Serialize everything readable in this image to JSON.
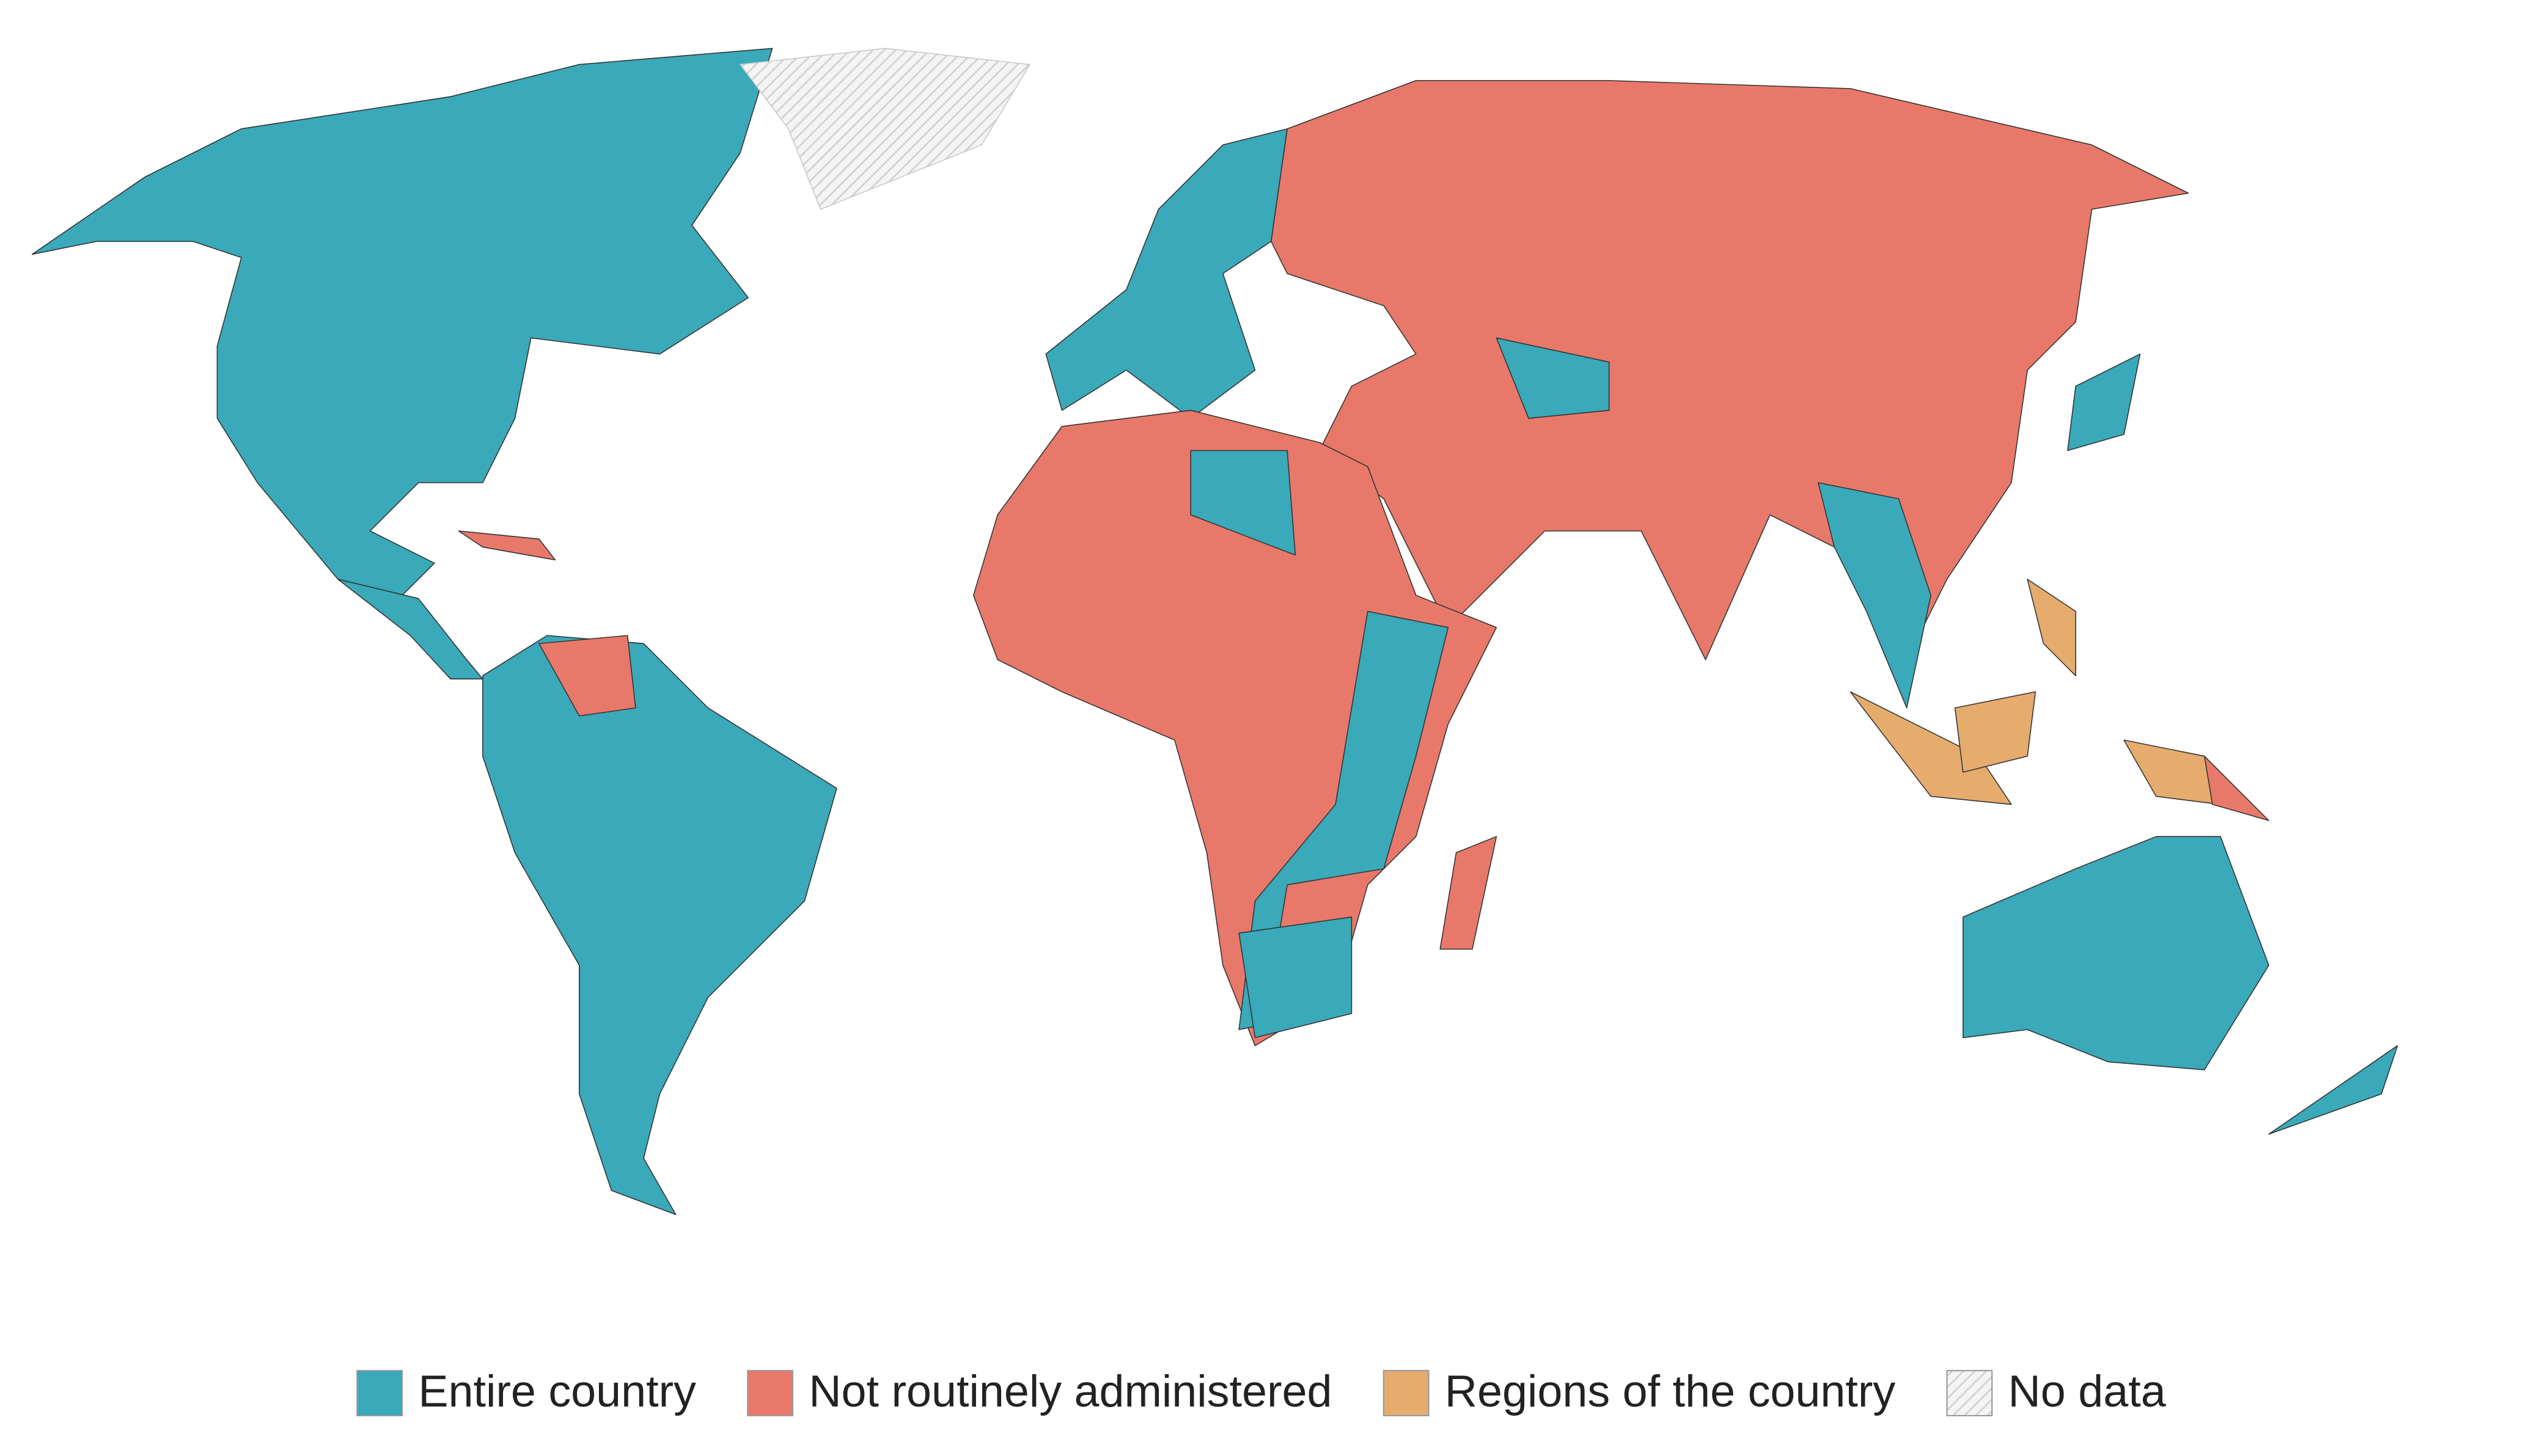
{
  "legend": {
    "items": [
      {
        "label": "Entire country",
        "color": "#3aa9b9"
      },
      {
        "label": "Not routinely administered",
        "color": "#e8796a"
      },
      {
        "label": "Regions of the country",
        "color": "#e6ac6e"
      },
      {
        "label": "No data",
        "color": "#e8e8e8",
        "fill": "hatch"
      }
    ]
  }
}
